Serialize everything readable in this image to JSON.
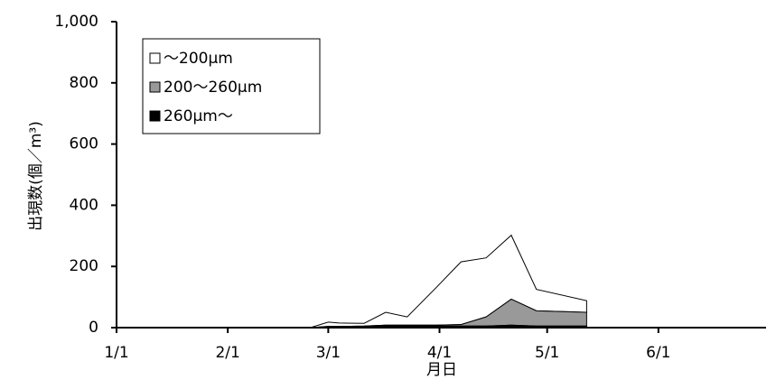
{
  "chart_data": {
    "type": "stacked-area",
    "y_label": "出現数(個／m³)",
    "x_label": "月日",
    "x": [
      0,
      54,
      59,
      62,
      69,
      75,
      81,
      89,
      96,
      103,
      110,
      117,
      131
    ],
    "series": [
      {
        "name": "～200μm",
        "color": "#ffffff",
        "values": [
          0,
          0,
          14,
          11,
          9,
          42,
          27,
          122,
          205,
          193,
          209,
          70,
          38
        ]
      },
      {
        "name": "200～260μm",
        "color": "#999999",
        "values": [
          0,
          0,
          2,
          2,
          2,
          3,
          3,
          3,
          5,
          30,
          85,
          50,
          45
        ]
      },
      {
        "name": "260μm～",
        "color": "#000000",
        "values": [
          0,
          0,
          2,
          2,
          3,
          5,
          5,
          5,
          5,
          5,
          8,
          5,
          5
        ]
      }
    ],
    "xlim": [
      0,
      181
    ],
    "xticks": [
      {
        "value": 0,
        "label": "1/1"
      },
      {
        "value": 31,
        "label": "2/1"
      },
      {
        "value": 59,
        "label": "3/1"
      },
      {
        "value": 90,
        "label": "4/1"
      },
      {
        "value": 120,
        "label": "5/1"
      },
      {
        "value": 151,
        "label": "6/1"
      }
    ],
    "ylim": [
      0,
      1000
    ],
    "yticks": [
      0,
      200,
      400,
      600,
      800,
      {
        "value": 1000,
        "label": "1,000"
      }
    ],
    "grid": false,
    "legend": "upper-left"
  }
}
